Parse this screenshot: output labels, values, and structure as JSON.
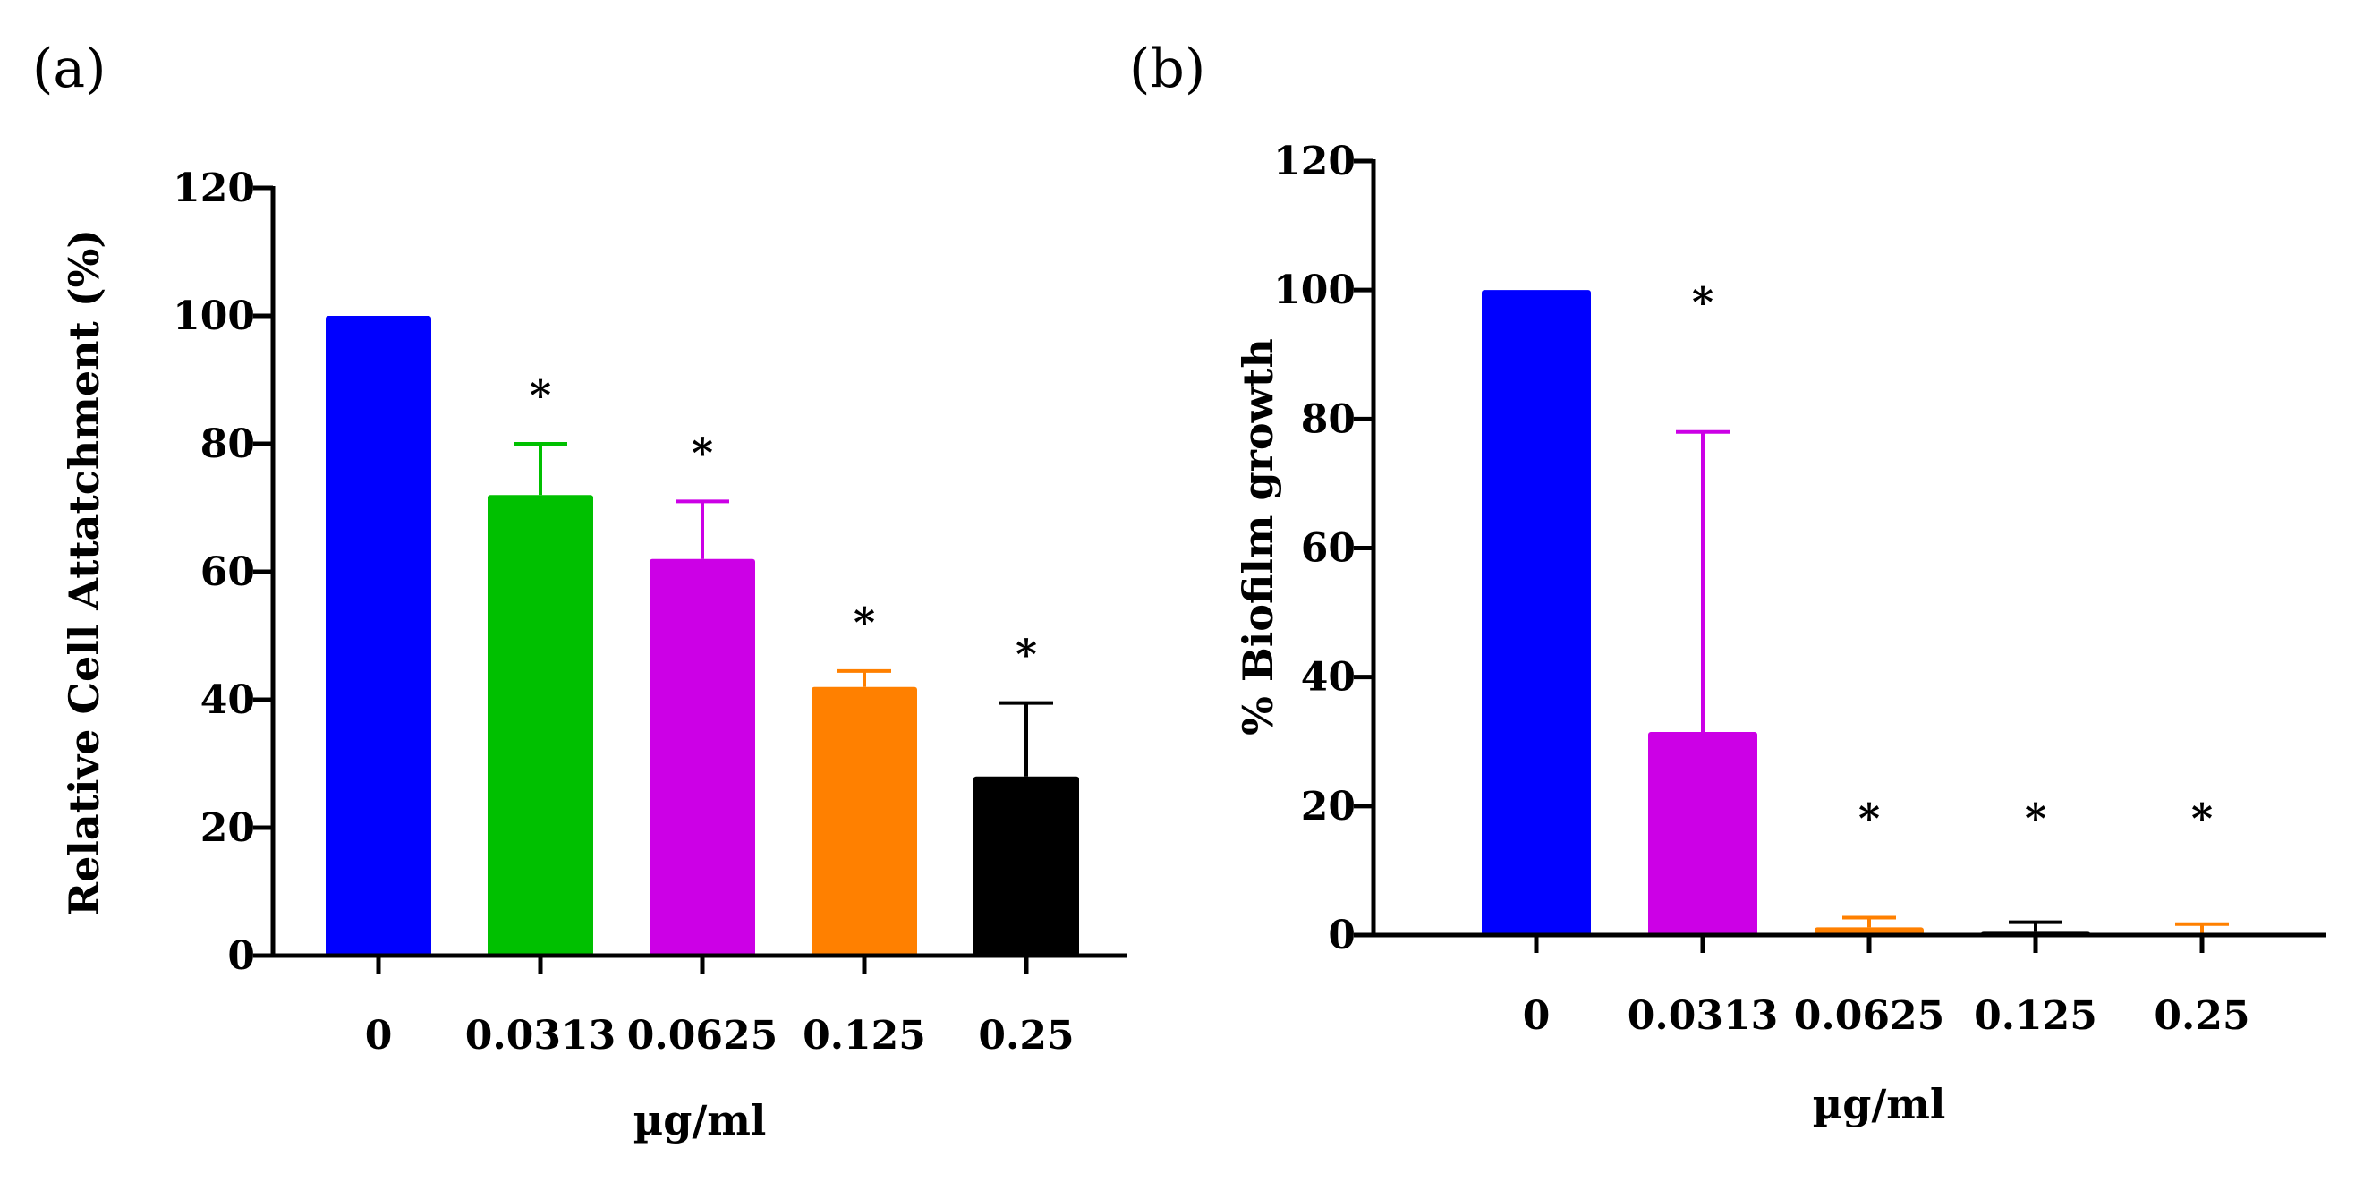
{
  "figure": {
    "panel_a_label": "(a)",
    "panel_b_label": "(b)"
  },
  "chart_data": [
    {
      "type": "bar",
      "panel": "(a)",
      "title": "",
      "xlabel": "µg/ml",
      "ylabel": "Relative Cell Attatchment (%)",
      "ylim": [
        0,
        120
      ],
      "yticks": [
        0,
        20,
        40,
        60,
        80,
        100,
        120
      ],
      "categories": [
        "0",
        "0.0313",
        "0.0625",
        "0.125",
        "0.25"
      ],
      "values": [
        100,
        72,
        62,
        42,
        28
      ],
      "errors": [
        0,
        8,
        9,
        2.5,
        11.5
      ],
      "colors": [
        "#0000ff",
        "#00c000",
        "#cc00e6",
        "#ff8000",
        "#000000"
      ],
      "significance": [
        "",
        "*",
        "*",
        "*",
        "*"
      ]
    },
    {
      "type": "bar",
      "panel": "(b)",
      "title": "",
      "xlabel": "µg/ml",
      "ylabel": "% Biofilm growth",
      "ylim": [
        0,
        120
      ],
      "yticks": [
        0,
        20,
        40,
        60,
        80,
        100,
        120
      ],
      "categories": [
        "0",
        "0.0313",
        "0.0625",
        "0.125",
        "0.25"
      ],
      "values": [
        100,
        31.5,
        1.2,
        0.5,
        0.3
      ],
      "errors": [
        0,
        46.5,
        1.5,
        1.5,
        1.4
      ],
      "colors": [
        "#0000ff",
        "#cc00e6",
        "#ff8000",
        "#000000",
        "#ff8000"
      ],
      "significance": [
        "",
        "*",
        "*",
        "*",
        "*"
      ]
    }
  ]
}
